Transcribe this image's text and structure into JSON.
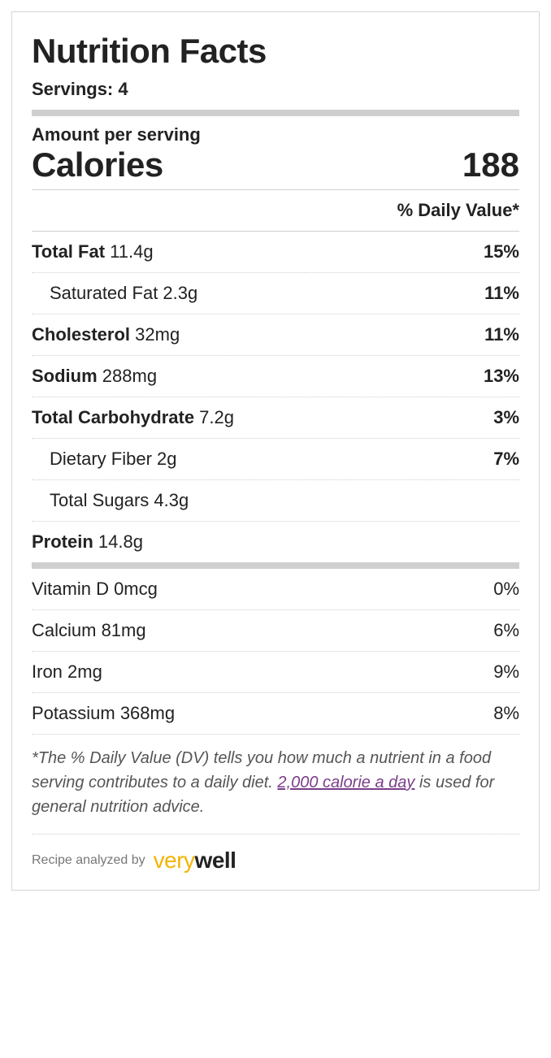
{
  "panel": {
    "title": "Nutrition Facts",
    "servings_label": "Servings: ",
    "servings_value": "4",
    "amount_per_serving": "Amount per serving",
    "calories_label": "Calories",
    "calories_value": "188",
    "dv_header": "% Daily Value*",
    "colors": {
      "border": "#d6d6d6",
      "thick_bar": "#cfcfcf",
      "text": "#222222",
      "muted": "#555555",
      "dotted": "#cfcfcf",
      "link": "#7a3d8a",
      "brand_accent": "#f4b400",
      "background": "#ffffff"
    },
    "nutrients_primary": [
      {
        "name": "Total Fat",
        "amount": "11.4g",
        "dv": "15%",
        "bold": true,
        "indent": false
      },
      {
        "name": "Saturated Fat",
        "amount": "2.3g",
        "dv": "11%",
        "bold": false,
        "indent": true
      },
      {
        "name": "Cholesterol",
        "amount": "32mg",
        "dv": "11%",
        "bold": true,
        "indent": false
      },
      {
        "name": "Sodium",
        "amount": "288mg",
        "dv": "13%",
        "bold": true,
        "indent": false
      },
      {
        "name": "Total Carbohydrate",
        "amount": "7.2g",
        "dv": "3%",
        "bold": true,
        "indent": false
      },
      {
        "name": "Dietary Fiber",
        "amount": "2g",
        "dv": "7%",
        "bold": false,
        "indent": true
      },
      {
        "name": "Total Sugars",
        "amount": "4.3g",
        "dv": "",
        "bold": false,
        "indent": true
      },
      {
        "name": "Protein",
        "amount": "14.8g",
        "dv": "",
        "bold": true,
        "indent": false
      }
    ],
    "nutrients_secondary": [
      {
        "name": "Vitamin D",
        "amount": "0mcg",
        "dv": "0%"
      },
      {
        "name": "Calcium",
        "amount": "81mg",
        "dv": "6%"
      },
      {
        "name": "Iron",
        "amount": "2mg",
        "dv": "9%"
      },
      {
        "name": "Potassium",
        "amount": "368mg",
        "dv": "8%"
      }
    ],
    "footnote_pre": "*The % Daily Value (DV) tells you how much a nutrient in a food serving contributes to a daily diet. ",
    "footnote_link": "2,000 calorie a day",
    "footnote_post": " is used for general nutrition advice.",
    "analyzed_by": "Recipe analyzed by",
    "brand_very": "very",
    "brand_well": "well"
  }
}
